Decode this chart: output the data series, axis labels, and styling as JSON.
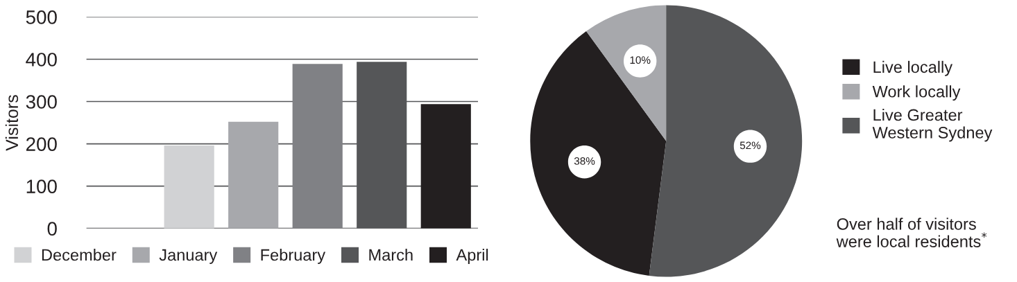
{
  "chart_data": [
    {
      "type": "bar",
      "ylabel": "Visitors",
      "categories": [
        null,
        null,
        null,
        null,
        null
      ],
      "ylim": [
        0,
        500
      ],
      "yticks": [
        0,
        100,
        200,
        300,
        400,
        500
      ],
      "grid": "y",
      "legend": "bottom",
      "stacked": true,
      "series": [
        {
          "name": "December",
          "color": "#d1d2d4",
          "values": [
            196,
            null,
            null,
            null,
            null
          ]
        },
        {
          "name": "January",
          "color": "#a7a8ac",
          "values": [
            null,
            252,
            null,
            null,
            null
          ]
        },
        {
          "name": "February",
          "color": "#808185",
          "values": [
            null,
            null,
            389,
            null,
            null
          ]
        },
        {
          "name": "March",
          "color": "#555658",
          "values": [
            null,
            null,
            null,
            394,
            null
          ]
        },
        {
          "name": "April",
          "color": "#231f20",
          "values": [
            null,
            null,
            null,
            null,
            294
          ]
        }
      ]
    },
    {
      "type": "pie",
      "categories": [
        "Live locally",
        "Work locally",
        "Live Greater\nWestern Sydney"
      ],
      "values": [
        38,
        10,
        52
      ],
      "colors": [
        "#231f20",
        "#a7a8ac",
        "#555658"
      ],
      "value_labels": [
        "38%",
        "10%",
        "52%"
      ],
      "legend": "right",
      "annotations": [
        "Over half of visitors\nwere local residents$^{*}$"
      ]
    }
  ]
}
